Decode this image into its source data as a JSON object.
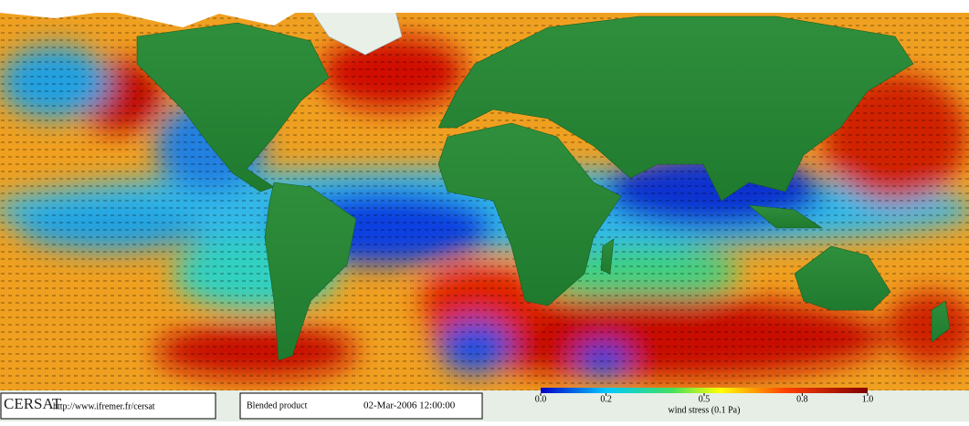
{
  "footer": {
    "logo": "CERSAT",
    "url": "http://www.ifremer.fr/cersat",
    "product": "Blended product",
    "date": "02-Mar-2006 12:00:00"
  },
  "colorbar": {
    "label": "wind stress (0.1 Pa)",
    "range": [
      0,
      1
    ],
    "ticks": [
      {
        "value": 0,
        "label": "0.0"
      },
      0.2,
      0.5,
      0.8,
      {
        "value": 1,
        "label": "1.0"
      }
    ]
  }
}
